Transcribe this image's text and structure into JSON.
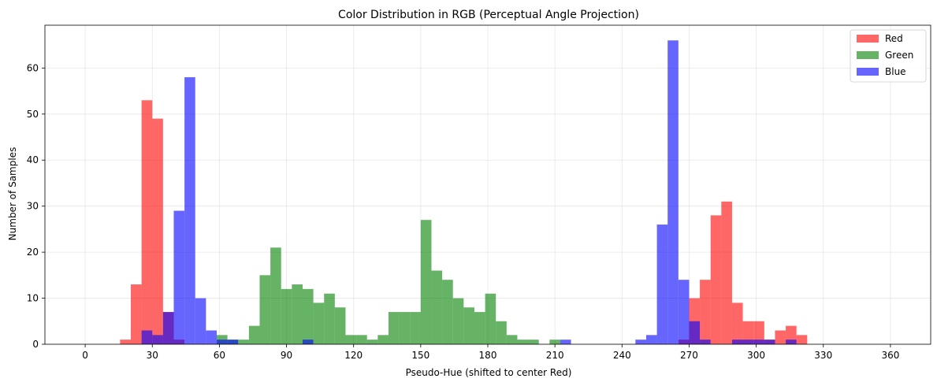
{
  "chart_data": {
    "type": "bar",
    "title": "Color Distribution in RGB (Perceptual Angle Projection)",
    "xlabel": "Pseudo-Hue (shifted to center Red)",
    "ylabel": "Number of Samples",
    "xlim": [
      -18,
      378
    ],
    "ylim": [
      0,
      69.3
    ],
    "xticks": [
      0,
      30,
      60,
      90,
      120,
      150,
      180,
      210,
      240,
      270,
      300,
      330,
      360
    ],
    "yticks": [
      0,
      10,
      20,
      30,
      40,
      50,
      60
    ],
    "bin_width": 4.8,
    "grid": true,
    "legend_position": "top-right",
    "series": [
      {
        "name": "Red",
        "color": "#ff0000",
        "opacity": 0.6,
        "bins": [
          {
            "x": 15.6,
            "y": 1
          },
          {
            "x": 20.4,
            "y": 13
          },
          {
            "x": 25.2,
            "y": 53
          },
          {
            "x": 30.0,
            "y": 49
          },
          {
            "x": 34.8,
            "y": 7
          },
          {
            "x": 39.6,
            "y": 1
          },
          {
            "x": 265.2,
            "y": 1
          },
          {
            "x": 270.0,
            "y": 10
          },
          {
            "x": 274.8,
            "y": 14
          },
          {
            "x": 279.6,
            "y": 28
          },
          {
            "x": 284.4,
            "y": 31
          },
          {
            "x": 289.2,
            "y": 9
          },
          {
            "x": 294.0,
            "y": 5
          },
          {
            "x": 298.8,
            "y": 5
          },
          {
            "x": 303.6,
            "y": 1
          },
          {
            "x": 308.4,
            "y": 3
          },
          {
            "x": 313.2,
            "y": 4
          },
          {
            "x": 318.0,
            "y": 2
          }
        ]
      },
      {
        "name": "Green",
        "color": "#008000",
        "opacity": 0.6,
        "bins": [
          {
            "x": 58.8,
            "y": 2
          },
          {
            "x": 63.6,
            "y": 1
          },
          {
            "x": 68.4,
            "y": 1
          },
          {
            "x": 73.2,
            "y": 4
          },
          {
            "x": 78.0,
            "y": 15
          },
          {
            "x": 82.8,
            "y": 21
          },
          {
            "x": 87.6,
            "y": 12
          },
          {
            "x": 92.4,
            "y": 13
          },
          {
            "x": 97.2,
            "y": 12
          },
          {
            "x": 102.0,
            "y": 9
          },
          {
            "x": 106.8,
            "y": 11
          },
          {
            "x": 111.6,
            "y": 8
          },
          {
            "x": 116.4,
            "y": 2
          },
          {
            "x": 121.2,
            "y": 2
          },
          {
            "x": 126.0,
            "y": 1
          },
          {
            "x": 130.8,
            "y": 2
          },
          {
            "x": 135.6,
            "y": 7
          },
          {
            "x": 140.4,
            "y": 7
          },
          {
            "x": 145.2,
            "y": 7
          },
          {
            "x": 150.0,
            "y": 27
          },
          {
            "x": 154.8,
            "y": 16
          },
          {
            "x": 159.6,
            "y": 14
          },
          {
            "x": 164.4,
            "y": 10
          },
          {
            "x": 169.2,
            "y": 8
          },
          {
            "x": 174.0,
            "y": 7
          },
          {
            "x": 178.8,
            "y": 11
          },
          {
            "x": 183.6,
            "y": 5
          },
          {
            "x": 188.4,
            "y": 2
          },
          {
            "x": 193.2,
            "y": 1
          },
          {
            "x": 198.0,
            "y": 1
          },
          {
            "x": 207.6,
            "y": 1
          }
        ]
      },
      {
        "name": "Blue",
        "color": "#0000ff",
        "opacity": 0.6,
        "bins": [
          {
            "x": 25.2,
            "y": 3
          },
          {
            "x": 30.0,
            "y": 2
          },
          {
            "x": 34.8,
            "y": 7
          },
          {
            "x": 39.6,
            "y": 29
          },
          {
            "x": 44.4,
            "y": 58
          },
          {
            "x": 49.2,
            "y": 10
          },
          {
            "x": 54.0,
            "y": 3
          },
          {
            "x": 58.8,
            "y": 1
          },
          {
            "x": 63.6,
            "y": 1
          },
          {
            "x": 97.2,
            "y": 1
          },
          {
            "x": 212.4,
            "y": 1
          },
          {
            "x": 246.0,
            "y": 1
          },
          {
            "x": 250.8,
            "y": 2
          },
          {
            "x": 255.6,
            "y": 26
          },
          {
            "x": 260.4,
            "y": 66
          },
          {
            "x": 265.2,
            "y": 14
          },
          {
            "x": 270.0,
            "y": 5
          },
          {
            "x": 274.8,
            "y": 1
          },
          {
            "x": 289.2,
            "y": 1
          },
          {
            "x": 294.0,
            "y": 1
          },
          {
            "x": 298.8,
            "y": 1
          },
          {
            "x": 303.6,
            "y": 1
          },
          {
            "x": 313.2,
            "y": 1
          }
        ]
      }
    ]
  }
}
